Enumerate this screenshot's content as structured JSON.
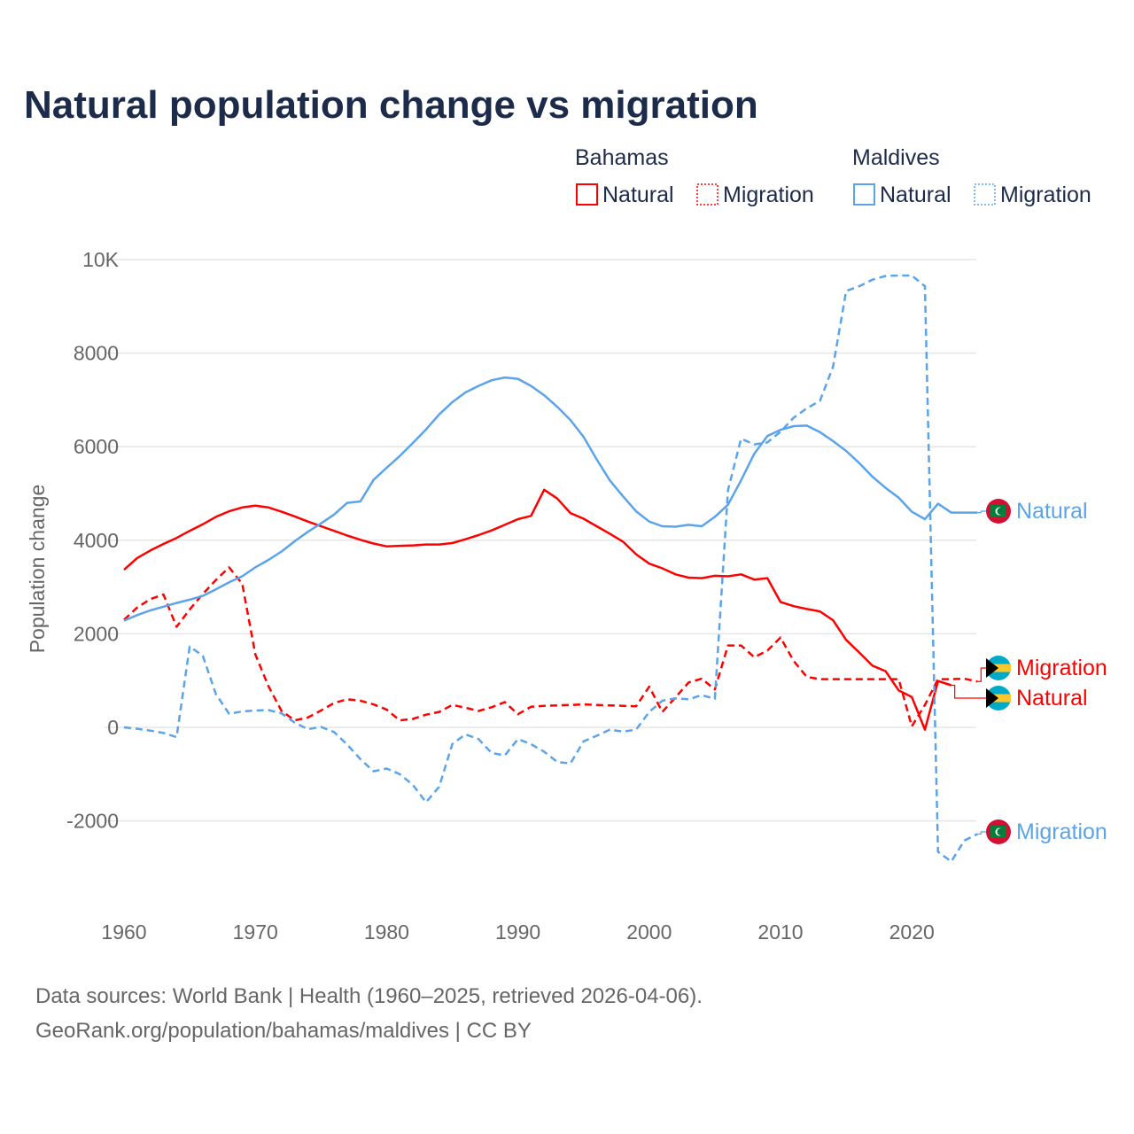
{
  "title": "Natural population change vs migration",
  "legend": {
    "groups": [
      {
        "name": "Bahamas",
        "items": [
          "Natural",
          "Migration"
        ],
        "color": "#ff0000"
      },
      {
        "name": "Maldives",
        "items": [
          "Natural",
          "Migration"
        ],
        "color": "#5ba4ea"
      }
    ]
  },
  "source_line1": "Data sources: World Bank | Health (1960–2025, retrieved 2026-04-06).",
  "source_line2": "GeoRank.org/population/bahamas/maldives | CC BY",
  "chart_data": {
    "type": "line",
    "title": "Natural population change vs migration",
    "xlabel": "",
    "ylabel": "Population change",
    "xlim": [
      1960,
      2025
    ],
    "ylim": [
      -3000,
      10000
    ],
    "xticks": [
      "1960",
      "1970",
      "1980",
      "1990",
      "2000",
      "2010",
      "2020"
    ],
    "yticks": [
      "10K",
      "8000",
      "6000",
      "4000",
      "2000",
      "0",
      "-2000"
    ],
    "grid": true,
    "legend_position": "top-right",
    "start_year": 1960,
    "series": [
      {
        "name": "Bahamas Natural",
        "label": "Natural",
        "color": "#ff0000",
        "dash": false,
        "values": [
          3370,
          3620,
          3780,
          3920,
          4050,
          4200,
          4340,
          4500,
          4620,
          4700,
          4740,
          4700,
          4610,
          4510,
          4400,
          4300,
          4200,
          4100,
          4010,
          3930,
          3870,
          3880,
          3890,
          3910,
          3910,
          3940,
          4020,
          4110,
          4210,
          4330,
          4450,
          4520,
          5080,
          4890,
          4580,
          4460,
          4300,
          4140,
          3970,
          3700,
          3500,
          3400,
          3270,
          3200,
          3190,
          3240,
          3230,
          3270,
          3160,
          3190,
          2680,
          2590,
          2530,
          2480,
          2290,
          1870,
          1600,
          1320,
          1200,
          790,
          650,
          -50,
          990,
          900
        ]
      },
      {
        "name": "Bahamas Migration",
        "label": "Migration",
        "color": "#ff0000",
        "dash": true,
        "values": [
          2300,
          2560,
          2740,
          2840,
          2150,
          2520,
          2850,
          3150,
          3420,
          3070,
          1560,
          880,
          350,
          150,
          210,
          360,
          520,
          600,
          570,
          490,
          380,
          150,
          180,
          270,
          330,
          480,
          420,
          350,
          430,
          540,
          280,
          440,
          460,
          470,
          480,
          490,
          480,
          470,
          460,
          450,
          870,
          330,
          640,
          960,
          1040,
          810,
          1750,
          1750,
          1500,
          1640,
          1920,
          1420,
          1080,
          1030,
          1030,
          1030,
          1030,
          1030,
          1030,
          1030,
          20,
          480,
          1030,
          1030,
          1040,
          980
        ]
      },
      {
        "name": "Maldives Natural",
        "label": "Natural",
        "color": "#5ba4ea",
        "dash": false,
        "values": [
          2280,
          2400,
          2500,
          2580,
          2660,
          2730,
          2810,
          2950,
          3100,
          3230,
          3420,
          3580,
          3760,
          3980,
          4180,
          4360,
          4550,
          4800,
          4830,
          5290,
          5550,
          5800,
          6080,
          6370,
          6690,
          6950,
          7160,
          7300,
          7420,
          7480,
          7450,
          7300,
          7100,
          6850,
          6570,
          6210,
          5730,
          5280,
          4940,
          4620,
          4400,
          4300,
          4290,
          4330,
          4300,
          4500,
          4760,
          5280,
          5850,
          6230,
          6360,
          6440,
          6450,
          6310,
          6120,
          5910,
          5650,
          5360,
          5120,
          4910,
          4610,
          4450,
          4780,
          4590,
          4590,
          4590
        ]
      },
      {
        "name": "Maldives Migration",
        "label": "Migration",
        "color": "#5ba4ea",
        "dash": true,
        "values": [
          0,
          -30,
          -70,
          -120,
          -210,
          1730,
          1530,
          710,
          290,
          340,
          360,
          370,
          300,
          100,
          -40,
          10,
          -100,
          -370,
          -680,
          -940,
          -880,
          -1000,
          -1230,
          -1600,
          -1270,
          -360,
          -150,
          -250,
          -550,
          -600,
          -250,
          -360,
          -520,
          -740,
          -770,
          -300,
          -180,
          -50,
          -90,
          -50,
          330,
          570,
          620,
          600,
          690,
          610,
          5070,
          6170,
          6050,
          6090,
          6320,
          6620,
          6820,
          6980,
          7710,
          9330,
          9430,
          9570,
          9650,
          9660,
          9660,
          9430,
          -2660,
          -2870,
          -2420,
          -2280
        ]
      }
    ]
  }
}
